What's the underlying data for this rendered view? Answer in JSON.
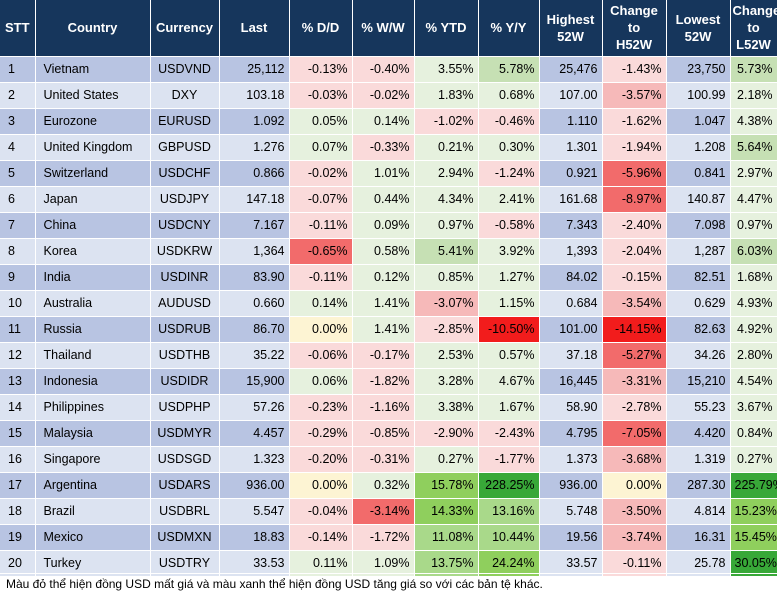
{
  "headers": [
    "STT",
    "Country",
    "Currency",
    "Last",
    "% D/D",
    "% W/W",
    "% YTD",
    "% Y/Y",
    "Highest\n52W",
    "Change\nto\nH52W",
    "Lowest\n52W",
    "Change\nto\nL52W"
  ],
  "rows": [
    {
      "stt": "1",
      "country": "Vietnam",
      "currency": "USDVND",
      "last": "25,112",
      "dd": "-0.13%",
      "ww": "-0.40%",
      "ytd": "3.55%",
      "yy": "5.78%",
      "high": "25,476",
      "chigh": "-1.43%",
      "low": "23,750",
      "clow": "5.73%",
      "c": {
        "dd": "#fadada",
        "ww": "#fadada",
        "ytd": "#e6f1de",
        "yy": "#c6e0b4",
        "chigh": "#fadada",
        "clow": "#c6e0b4"
      }
    },
    {
      "stt": "2",
      "country": "United States",
      "currency": "DXY",
      "last": "103.18",
      "dd": "-0.03%",
      "ww": "-0.02%",
      "ytd": "1.83%",
      "yy": "0.68%",
      "high": "107.00",
      "chigh": "-3.57%",
      "low": "100.99",
      "clow": "2.18%",
      "c": {
        "dd": "#fadada",
        "ww": "#fadada",
        "ytd": "#e6f1de",
        "yy": "#e6f1de",
        "chigh": "#f6b9b9",
        "clow": "#e6f1de"
      }
    },
    {
      "stt": "3",
      "country": "Eurozone",
      "currency": "EURUSD",
      "last": "1.092",
      "dd": "0.05%",
      "ww": "0.14%",
      "ytd": "-1.02%",
      "yy": "-0.46%",
      "high": "1.110",
      "chigh": "-1.62%",
      "low": "1.047",
      "clow": "4.38%",
      "c": {
        "dd": "#e6f1de",
        "ww": "#e6f1de",
        "ytd": "#fadada",
        "yy": "#fadada",
        "chigh": "#fadada",
        "clow": "#e6f1de"
      }
    },
    {
      "stt": "4",
      "country": "United Kingdom",
      "currency": "GBPUSD",
      "last": "1.276",
      "dd": "0.07%",
      "ww": "-0.33%",
      "ytd": "0.21%",
      "yy": "0.30%",
      "high": "1.301",
      "chigh": "-1.94%",
      "low": "1.208",
      "clow": "5.64%",
      "c": {
        "dd": "#e6f1de",
        "ww": "#fadada",
        "ytd": "#e6f1de",
        "yy": "#e6f1de",
        "chigh": "#fadada",
        "clow": "#c6e0b4"
      }
    },
    {
      "stt": "5",
      "country": "Switzerland",
      "currency": "USDCHF",
      "last": "0.866",
      "dd": "-0.02%",
      "ww": "1.01%",
      "ytd": "2.94%",
      "yy": "-1.24%",
      "high": "0.921",
      "chigh": "-5.96%",
      "low": "0.841",
      "clow": "2.97%",
      "c": {
        "dd": "#fadada",
        "ww": "#e6f1de",
        "ytd": "#e6f1de",
        "yy": "#fadada",
        "chigh": "#f26b6b",
        "clow": "#e6f1de"
      }
    },
    {
      "stt": "6",
      "country": "Japan",
      "currency": "USDJPY",
      "last": "147.18",
      "dd": "-0.07%",
      "ww": "0.44%",
      "ytd": "4.34%",
      "yy": "2.41%",
      "high": "161.68",
      "chigh": "-8.97%",
      "low": "140.87",
      "clow": "4.47%",
      "c": {
        "dd": "#fadada",
        "ww": "#e6f1de",
        "ytd": "#e6f1de",
        "yy": "#e6f1de",
        "chigh": "#f26b6b",
        "clow": "#e6f1de"
      }
    },
    {
      "stt": "7",
      "country": "China",
      "currency": "USDCNY",
      "last": "7.167",
      "dd": "-0.11%",
      "ww": "0.09%",
      "ytd": "0.97%",
      "yy": "-0.58%",
      "high": "7.343",
      "chigh": "-2.40%",
      "low": "7.098",
      "clow": "0.97%",
      "c": {
        "dd": "#fadada",
        "ww": "#e6f1de",
        "ytd": "#e6f1de",
        "yy": "#fadada",
        "chigh": "#fadada",
        "clow": "#e6f1de"
      }
    },
    {
      "stt": "8",
      "country": "Korea",
      "currency": "USDKRW",
      "last": "1,364",
      "dd": "-0.65%",
      "ww": "0.58%",
      "ytd": "5.41%",
      "yy": "3.92%",
      "high": "1,393",
      "chigh": "-2.04%",
      "low": "1,287",
      "clow": "6.03%",
      "c": {
        "dd": "#f26b6b",
        "ww": "#e6f1de",
        "ytd": "#c6e0b4",
        "yy": "#e6f1de",
        "chigh": "#fadada",
        "clow": "#c6e0b4"
      }
    },
    {
      "stt": "9",
      "country": "India",
      "currency": "USDINR",
      "last": "83.90",
      "dd": "-0.11%",
      "ww": "0.12%",
      "ytd": "0.85%",
      "yy": "1.27%",
      "high": "84.02",
      "chigh": "-0.15%",
      "low": "82.51",
      "clow": "1.68%",
      "c": {
        "dd": "#fadada",
        "ww": "#e6f1de",
        "ytd": "#e6f1de",
        "yy": "#e6f1de",
        "chigh": "#fadada",
        "clow": "#e6f1de"
      }
    },
    {
      "stt": "10",
      "country": "Australia",
      "currency": "AUDUSD",
      "last": "0.660",
      "dd": "0.14%",
      "ww": "1.41%",
      "ytd": "-3.07%",
      "yy": "1.15%",
      "high": "0.684",
      "chigh": "-3.54%",
      "low": "0.629",
      "clow": "4.93%",
      "c": {
        "dd": "#e6f1de",
        "ww": "#e6f1de",
        "ytd": "#f6b9b9",
        "yy": "#e6f1de",
        "chigh": "#f6b9b9",
        "clow": "#e6f1de"
      }
    },
    {
      "stt": "11",
      "country": "Russia",
      "currency": "USDRUB",
      "last": "86.70",
      "dd": "0.00%",
      "ww": "1.41%",
      "ytd": "-2.85%",
      "yy": "-10.50%",
      "high": "101.00",
      "chigh": "-14.15%",
      "low": "82.63",
      "clow": "4.92%",
      "c": {
        "dd": "#fdf4d3",
        "ww": "#e6f1de",
        "ytd": "#fadada",
        "yy": "#f21c1c",
        "chigh": "#f21c1c",
        "clow": "#e6f1de"
      }
    },
    {
      "stt": "12",
      "country": "Thailand",
      "currency": "USDTHB",
      "last": "35.22",
      "dd": "-0.06%",
      "ww": "-0.17%",
      "ytd": "2.53%",
      "yy": "0.57%",
      "high": "37.18",
      "chigh": "-5.27%",
      "low": "34.26",
      "clow": "2.80%",
      "c": {
        "dd": "#fadada",
        "ww": "#fadada",
        "ytd": "#e6f1de",
        "yy": "#e6f1de",
        "chigh": "#f26b6b",
        "clow": "#e6f1de"
      }
    },
    {
      "stt": "13",
      "country": "Indonesia",
      "currency": "USDIDR",
      "last": "15,900",
      "dd": "0.06%",
      "ww": "-1.82%",
      "ytd": "3.28%",
      "yy": "4.67%",
      "high": "16,445",
      "chigh": "-3.31%",
      "low": "15,210",
      "clow": "4.54%",
      "c": {
        "dd": "#e6f1de",
        "ww": "#fadada",
        "ytd": "#e6f1de",
        "yy": "#e6f1de",
        "chigh": "#f6b9b9",
        "clow": "#e6f1de"
      }
    },
    {
      "stt": "14",
      "country": "Philippines",
      "currency": "USDPHP",
      "last": "57.26",
      "dd": "-0.23%",
      "ww": "-1.16%",
      "ytd": "3.38%",
      "yy": "1.67%",
      "high": "58.90",
      "chigh": "-2.78%",
      "low": "55.23",
      "clow": "3.67%",
      "c": {
        "dd": "#fadada",
        "ww": "#fadada",
        "ytd": "#e6f1de",
        "yy": "#e6f1de",
        "chigh": "#fadada",
        "clow": "#e6f1de"
      }
    },
    {
      "stt": "15",
      "country": "Malaysia",
      "currency": "USDMYR",
      "last": "4.457",
      "dd": "-0.29%",
      "ww": "-0.85%",
      "ytd": "-2.90%",
      "yy": "-2.43%",
      "high": "4.795",
      "chigh": "-7.05%",
      "low": "4.420",
      "clow": "0.84%",
      "c": {
        "dd": "#fadada",
        "ww": "#fadada",
        "ytd": "#fadada",
        "yy": "#fadada",
        "chigh": "#f26b6b",
        "clow": "#e6f1de"
      }
    },
    {
      "stt": "16",
      "country": "Singapore",
      "currency": "USDSGD",
      "last": "1.323",
      "dd": "-0.20%",
      "ww": "-0.31%",
      "ytd": "0.27%",
      "yy": "-1.77%",
      "high": "1.373",
      "chigh": "-3.68%",
      "low": "1.319",
      "clow": "0.27%",
      "c": {
        "dd": "#fadada",
        "ww": "#fadada",
        "ytd": "#e6f1de",
        "yy": "#fadada",
        "chigh": "#f6b9b9",
        "clow": "#e6f1de"
      }
    },
    {
      "stt": "17",
      "country": "Argentina",
      "currency": "USDARS",
      "last": "936.00",
      "dd": "0.00%",
      "ww": "0.32%",
      "ytd": "15.78%",
      "yy": "228.25%",
      "high": "936.00",
      "chigh": "0.00%",
      "low": "287.30",
      "clow": "225.79%",
      "c": {
        "dd": "#fdf4d3",
        "ww": "#e6f1de",
        "ytd": "#8fcf5d",
        "yy": "#38a838",
        "chigh": "#fdf4d3",
        "clow": "#38a838"
      }
    },
    {
      "stt": "18",
      "country": "Brazil",
      "currency": "USDBRL",
      "last": "5.547",
      "dd": "-0.04%",
      "ww": "-3.14%",
      "ytd": "14.33%",
      "yy": "13.16%",
      "high": "5.748",
      "chigh": "-3.50%",
      "low": "4.814",
      "clow": "15.23%",
      "c": {
        "dd": "#fadada",
        "ww": "#f26b6b",
        "ytd": "#8fcf5d",
        "yy": "#a9d98a",
        "chigh": "#f6b9b9",
        "clow": "#8fcf5d"
      }
    },
    {
      "stt": "19",
      "country": "Mexico",
      "currency": "USDMXN",
      "last": "18.83",
      "dd": "-0.14%",
      "ww": "-1.72%",
      "ytd": "11.08%",
      "yy": "10.44%",
      "high": "19.56",
      "chigh": "-3.74%",
      "low": "16.31",
      "clow": "15.45%",
      "c": {
        "dd": "#fadada",
        "ww": "#fadada",
        "ytd": "#a9d98a",
        "yy": "#a9d98a",
        "chigh": "#f6b9b9",
        "clow": "#8fcf5d"
      }
    },
    {
      "stt": "20",
      "country": "Turkey",
      "currency": "USDTRY",
      "last": "33.53",
      "dd": "0.11%",
      "ww": "1.09%",
      "ytd": "13.75%",
      "yy": "24.24%",
      "high": "33.57",
      "chigh": "-0.11%",
      "low": "25.78",
      "clow": "30.05%",
      "c": {
        "dd": "#e6f1de",
        "ww": "#e6f1de",
        "ytd": "#a9d98a",
        "yy": "#8fcf5d",
        "chigh": "#fadada",
        "clow": "#38a838"
      }
    }
  ],
  "footnote": "Màu đỏ thể hiện đồng USD mất giá và màu xanh thể hiện đồng USD tăng giá so với các bản tệ khác."
}
